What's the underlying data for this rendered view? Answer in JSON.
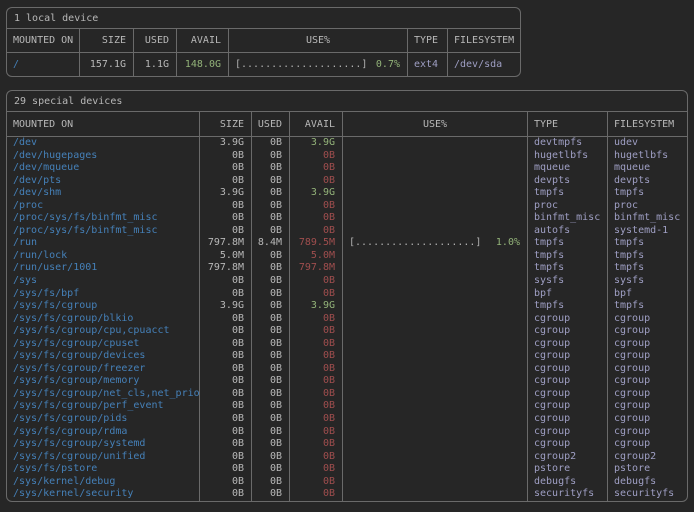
{
  "colors": {
    "background": "#262626",
    "border": "#6a6a6a",
    "text": "#b8b8b8",
    "path_blue": "#4580b8",
    "type_lavender": "#9f9fc4",
    "avail_green": "#93b379",
    "avail_red": "#a04e4e",
    "bar_gray": "#b0b0b0",
    "pct_green": "#93b379"
  },
  "local_table": {
    "title": "1 local device",
    "headers": [
      "MOUNTED ON",
      "SIZE",
      "USED",
      "AVAIL",
      "USE%",
      "TYPE",
      "FILESYSTEM"
    ],
    "rows": [
      {
        "mount": "/",
        "size": "157.1G",
        "used": "1.1G",
        "avail": "148.0G",
        "bar": "[....................]",
        "pct": "0.7%",
        "type": "ext4",
        "filesystem": "/dev/sda"
      }
    ]
  },
  "special_table": {
    "title": "29 special devices",
    "headers": [
      "MOUNTED ON",
      "SIZE",
      "USED",
      "AVAIL",
      "USE%",
      "TYPE",
      "FILESYSTEM"
    ],
    "rows": [
      {
        "mount": "/dev",
        "size": "3.9G",
        "used": "0B",
        "avail": "3.9G",
        "bar": "",
        "pct": "",
        "type": "devtmpfs",
        "filesystem": "udev"
      },
      {
        "mount": "/dev/hugepages",
        "size": "0B",
        "used": "0B",
        "avail": "0B",
        "bar": "",
        "pct": "",
        "type": "hugetlbfs",
        "filesystem": "hugetlbfs"
      },
      {
        "mount": "/dev/mqueue",
        "size": "0B",
        "used": "0B",
        "avail": "0B",
        "bar": "",
        "pct": "",
        "type": "mqueue",
        "filesystem": "mqueue"
      },
      {
        "mount": "/dev/pts",
        "size": "0B",
        "used": "0B",
        "avail": "0B",
        "bar": "",
        "pct": "",
        "type": "devpts",
        "filesystem": "devpts"
      },
      {
        "mount": "/dev/shm",
        "size": "3.9G",
        "used": "0B",
        "avail": "3.9G",
        "bar": "",
        "pct": "",
        "type": "tmpfs",
        "filesystem": "tmpfs"
      },
      {
        "mount": "/proc",
        "size": "0B",
        "used": "0B",
        "avail": "0B",
        "bar": "",
        "pct": "",
        "type": "proc",
        "filesystem": "proc"
      },
      {
        "mount": "/proc/sys/fs/binfmt_misc",
        "size": "0B",
        "used": "0B",
        "avail": "0B",
        "bar": "",
        "pct": "",
        "type": "binfmt_misc",
        "filesystem": "binfmt_misc"
      },
      {
        "mount": "/proc/sys/fs/binfmt_misc",
        "size": "0B",
        "used": "0B",
        "avail": "0B",
        "bar": "",
        "pct": "",
        "type": "autofs",
        "filesystem": "systemd-1"
      },
      {
        "mount": "/run",
        "size": "797.8M",
        "used": "8.4M",
        "avail": "789.5M",
        "bar": "[....................]",
        "pct": "1.0%",
        "type": "tmpfs",
        "filesystem": "tmpfs"
      },
      {
        "mount": "/run/lock",
        "size": "5.0M",
        "used": "0B",
        "avail": "5.0M",
        "bar": "",
        "pct": "",
        "type": "tmpfs",
        "filesystem": "tmpfs"
      },
      {
        "mount": "/run/user/1001",
        "size": "797.8M",
        "used": "0B",
        "avail": "797.8M",
        "bar": "",
        "pct": "",
        "type": "tmpfs",
        "filesystem": "tmpfs"
      },
      {
        "mount": "/sys",
        "size": "0B",
        "used": "0B",
        "avail": "0B",
        "bar": "",
        "pct": "",
        "type": "sysfs",
        "filesystem": "sysfs"
      },
      {
        "mount": "/sys/fs/bpf",
        "size": "0B",
        "used": "0B",
        "avail": "0B",
        "bar": "",
        "pct": "",
        "type": "bpf",
        "filesystem": "bpf"
      },
      {
        "mount": "/sys/fs/cgroup",
        "size": "3.9G",
        "used": "0B",
        "avail": "3.9G",
        "bar": "",
        "pct": "",
        "type": "tmpfs",
        "filesystem": "tmpfs"
      },
      {
        "mount": "/sys/fs/cgroup/blkio",
        "size": "0B",
        "used": "0B",
        "avail": "0B",
        "bar": "",
        "pct": "",
        "type": "cgroup",
        "filesystem": "cgroup"
      },
      {
        "mount": "/sys/fs/cgroup/cpu,cpuacct",
        "size": "0B",
        "used": "0B",
        "avail": "0B",
        "bar": "",
        "pct": "",
        "type": "cgroup",
        "filesystem": "cgroup"
      },
      {
        "mount": "/sys/fs/cgroup/cpuset",
        "size": "0B",
        "used": "0B",
        "avail": "0B",
        "bar": "",
        "pct": "",
        "type": "cgroup",
        "filesystem": "cgroup"
      },
      {
        "mount": "/sys/fs/cgroup/devices",
        "size": "0B",
        "used": "0B",
        "avail": "0B",
        "bar": "",
        "pct": "",
        "type": "cgroup",
        "filesystem": "cgroup"
      },
      {
        "mount": "/sys/fs/cgroup/freezer",
        "size": "0B",
        "used": "0B",
        "avail": "0B",
        "bar": "",
        "pct": "",
        "type": "cgroup",
        "filesystem": "cgroup"
      },
      {
        "mount": "/sys/fs/cgroup/memory",
        "size": "0B",
        "used": "0B",
        "avail": "0B",
        "bar": "",
        "pct": "",
        "type": "cgroup",
        "filesystem": "cgroup"
      },
      {
        "mount": "/sys/fs/cgroup/net_cls,net_prio",
        "size": "0B",
        "used": "0B",
        "avail": "0B",
        "bar": "",
        "pct": "",
        "type": "cgroup",
        "filesystem": "cgroup"
      },
      {
        "mount": "/sys/fs/cgroup/perf_event",
        "size": "0B",
        "used": "0B",
        "avail": "0B",
        "bar": "",
        "pct": "",
        "type": "cgroup",
        "filesystem": "cgroup"
      },
      {
        "mount": "/sys/fs/cgroup/pids",
        "size": "0B",
        "used": "0B",
        "avail": "0B",
        "bar": "",
        "pct": "",
        "type": "cgroup",
        "filesystem": "cgroup"
      },
      {
        "mount": "/sys/fs/cgroup/rdma",
        "size": "0B",
        "used": "0B",
        "avail": "0B",
        "bar": "",
        "pct": "",
        "type": "cgroup",
        "filesystem": "cgroup"
      },
      {
        "mount": "/sys/fs/cgroup/systemd",
        "size": "0B",
        "used": "0B",
        "avail": "0B",
        "bar": "",
        "pct": "",
        "type": "cgroup",
        "filesystem": "cgroup"
      },
      {
        "mount": "/sys/fs/cgroup/unified",
        "size": "0B",
        "used": "0B",
        "avail": "0B",
        "bar": "",
        "pct": "",
        "type": "cgroup2",
        "filesystem": "cgroup2"
      },
      {
        "mount": "/sys/fs/pstore",
        "size": "0B",
        "used": "0B",
        "avail": "0B",
        "bar": "",
        "pct": "",
        "type": "pstore",
        "filesystem": "pstore"
      },
      {
        "mount": "/sys/kernel/debug",
        "size": "0B",
        "used": "0B",
        "avail": "0B",
        "bar": "",
        "pct": "",
        "type": "debugfs",
        "filesystem": "debugfs"
      },
      {
        "mount": "/sys/kernel/security",
        "size": "0B",
        "used": "0B",
        "avail": "0B",
        "bar": "",
        "pct": "",
        "type": "securityfs",
        "filesystem": "securityfs"
      }
    ]
  }
}
